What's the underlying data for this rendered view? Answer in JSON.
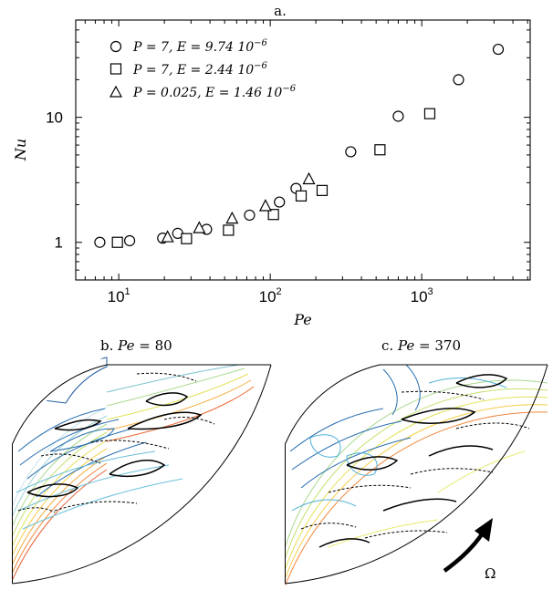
{
  "chart_data": [
    {
      "type": "scatter",
      "panel_label": "a.",
      "xlabel": "Pe",
      "ylabel": "Nu",
      "xscale": "log",
      "yscale": "log",
      "xlim": [
        5.2,
        5200
      ],
      "ylim": [
        0.5,
        60
      ],
      "xticks": [
        10,
        100,
        1000
      ],
      "xtick_labels": [
        "10",
        "10",
        "10"
      ],
      "xtick_exponents": [
        "1",
        "2",
        "3"
      ],
      "yticks": [
        1,
        10
      ],
      "ytick_labels": [
        "1",
        "10"
      ],
      "grid": false,
      "legend_position": "top-left",
      "series": [
        {
          "name": "P = 7, E = 9.74 10",
          "name_exponent": "−6",
          "marker": "circle",
          "x": [
            7.5,
            11.8,
            19.5,
            24.5,
            38,
            73,
            115,
            148,
            340,
            700,
            1750,
            3200
          ],
          "y": [
            1.0,
            1.03,
            1.08,
            1.18,
            1.27,
            1.65,
            2.1,
            2.7,
            5.3,
            10.2,
            20,
            35
          ]
        },
        {
          "name": "P = 7, E = 2.44 10",
          "name_exponent": "−6",
          "marker": "square",
          "x": [
            9.8,
            28,
            53,
            105,
            160,
            220,
            530,
            1130
          ],
          "y": [
            1.0,
            1.07,
            1.25,
            1.67,
            2.35,
            2.6,
            5.5,
            10.7
          ]
        },
        {
          "name": "P = 0.025, E = 1.46 10",
          "name_exponent": "−6",
          "marker": "triangle",
          "x": [
            21,
            34,
            56,
            93,
            180
          ],
          "y": [
            1.1,
            1.3,
            1.55,
            1.95,
            3.2
          ]
        }
      ]
    },
    {
      "type": "contour",
      "panel_label": "b.",
      "title": "Pe = 80",
      "title_var": "Pe",
      "title_value": "80"
    },
    {
      "type": "contour",
      "panel_label": "c.",
      "title": "Pe = 370",
      "title_var": "Pe",
      "title_value": "370",
      "annotation": "Ω"
    }
  ]
}
